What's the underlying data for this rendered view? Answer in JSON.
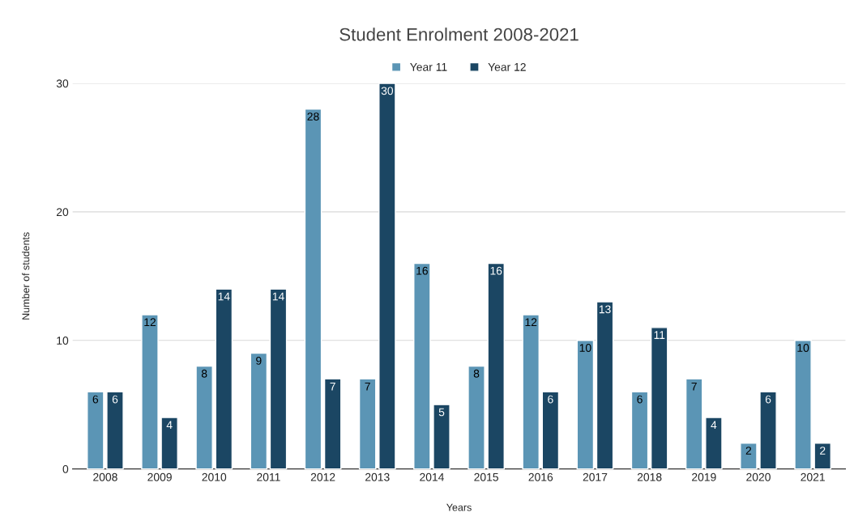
{
  "chart_data": {
    "type": "bar",
    "title": "Student Enrolment 2008-2021",
    "xlabel": "Years",
    "ylabel": "Number of students",
    "categories": [
      "2008",
      "2009",
      "2010",
      "2011",
      "2012",
      "2013",
      "2014",
      "2015",
      "2016",
      "2017",
      "2018",
      "2019",
      "2020",
      "2021"
    ],
    "series": [
      {
        "name": "Year 11",
        "color": "#5b95b5",
        "values": [
          6,
          12,
          8,
          9,
          28,
          7,
          16,
          8,
          12,
          10,
          6,
          7,
          2,
          10
        ]
      },
      {
        "name": "Year 12",
        "color": "#1b4663",
        "values": [
          6,
          4,
          14,
          14,
          7,
          30,
          5,
          16,
          6,
          13,
          11,
          4,
          6,
          2
        ]
      }
    ],
    "ylim": [
      0,
      30
    ],
    "yticks": [
      0,
      10,
      20,
      30
    ],
    "grid": "y",
    "legend": "top",
    "data_labels": true
  }
}
